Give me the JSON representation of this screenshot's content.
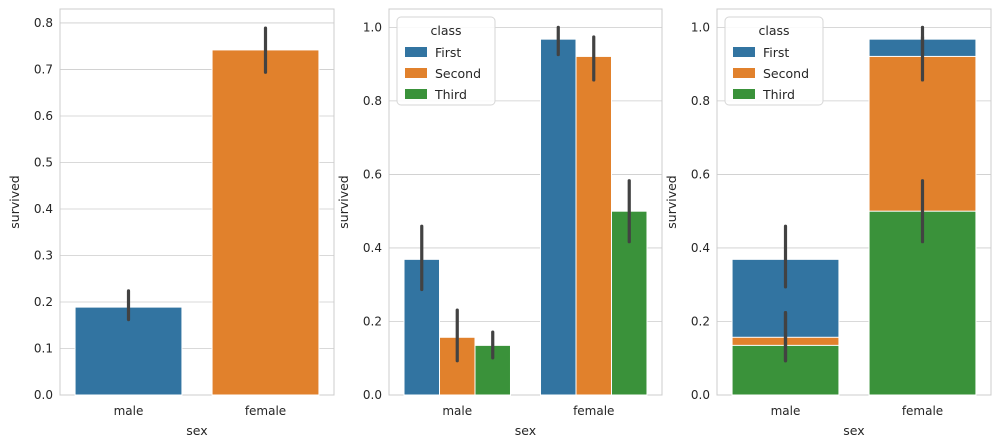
{
  "chart_data": [
    {
      "type": "bar",
      "mode": "simple",
      "categories": [
        "male",
        "female"
      ],
      "xlabel": "sex",
      "ylabel": "survived",
      "ylim": [
        0,
        0.83
      ],
      "yticks": [
        0.0,
        0.1,
        0.2,
        0.3,
        0.4,
        0.5,
        0.6,
        0.7,
        0.8
      ],
      "tick_decimals": 1,
      "grid": true,
      "series": [
        {
          "name": "male",
          "color": "#3274a1",
          "values": [
            0.189,
            null
          ],
          "ci_low": [
            0.162,
            null
          ],
          "ci_high": [
            0.224,
            null
          ]
        },
        {
          "name": "female",
          "color": "#e1812c",
          "values": [
            null,
            0.742
          ],
          "ci_low": [
            null,
            0.694
          ],
          "ci_high": [
            null,
            0.789
          ]
        }
      ]
    },
    {
      "type": "bar",
      "mode": "grouped",
      "categories": [
        "male",
        "female"
      ],
      "xlabel": "sex",
      "ylabel": "survived",
      "ylim": [
        0,
        1.05
      ],
      "yticks": [
        0.0,
        0.2,
        0.4,
        0.6,
        0.8,
        1.0
      ],
      "tick_decimals": 1,
      "grid": true,
      "legend": {
        "title": "class",
        "position": "top-left"
      },
      "series": [
        {
          "name": "First",
          "color": "#3274a1",
          "values": [
            0.369,
            0.968
          ],
          "ci_low": [
            0.287,
            0.926
          ],
          "ci_high": [
            0.459,
            1.0
          ]
        },
        {
          "name": "Second",
          "color": "#e1812c",
          "values": [
            0.157,
            0.921
          ],
          "ci_low": [
            0.093,
            0.857
          ],
          "ci_high": [
            0.231,
            0.974
          ]
        },
        {
          "name": "Third",
          "color": "#3a923a",
          "values": [
            0.135,
            0.5
          ],
          "ci_low": [
            0.101,
            0.417
          ],
          "ci_high": [
            0.171,
            0.583
          ]
        }
      ]
    },
    {
      "type": "bar",
      "mode": "overlay",
      "categories": [
        "male",
        "female"
      ],
      "xlabel": "sex",
      "ylabel": "survived",
      "ylim": [
        0,
        1.05
      ],
      "yticks": [
        0.0,
        0.2,
        0.4,
        0.6,
        0.8,
        1.0
      ],
      "tick_decimals": 1,
      "grid": true,
      "legend": {
        "title": "class",
        "position": "top-left"
      },
      "series": [
        {
          "name": "First",
          "color": "#3274a1",
          "values": [
            0.369,
            0.968
          ],
          "ci_low": [
            0.294,
            0.926
          ],
          "ci_high": [
            0.459,
            1.0
          ]
        },
        {
          "name": "Second",
          "color": "#e1812c",
          "values": [
            0.157,
            0.921
          ],
          "ci_low": [
            0.093,
            0.857
          ],
          "ci_high": [
            0.224,
            0.974
          ]
        },
        {
          "name": "Third",
          "color": "#3a923a",
          "values": [
            0.135,
            0.5
          ],
          "ci_low": [
            0.093,
            0.417
          ],
          "ci_high": [
            0.224,
            0.583
          ]
        }
      ]
    }
  ]
}
